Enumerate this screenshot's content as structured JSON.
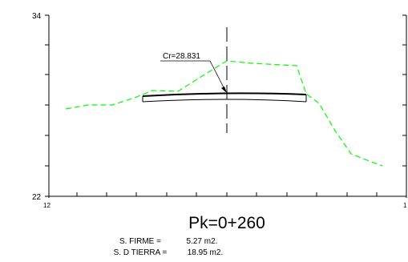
{
  "section": {
    "pk_label": "Pk=0+260",
    "y_axis": {
      "top_label": "34",
      "bottom_label": "22",
      "min": 22,
      "max": 34
    },
    "x_axis": {
      "left_label": "12",
      "right_label": "1"
    },
    "cr_label": "Cr=28.831",
    "areas": [
      {
        "label": "S. FIRME =",
        "value": "5.27 m2."
      },
      {
        "label": "S. D TIERRA =",
        "value": "18.95 m2."
      }
    ]
  },
  "colors": {
    "terrain": "#00ff00",
    "road": "#000000",
    "axes": "#000000"
  }
}
